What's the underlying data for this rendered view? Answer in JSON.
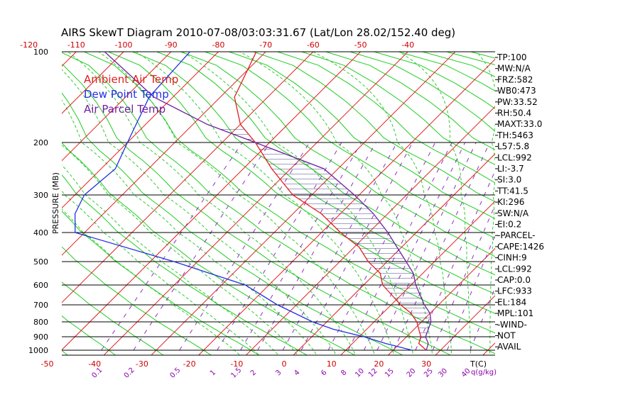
{
  "title": "AIRS SkewT Diagram 2010-07-08/03:03:31.67 (Lat/Lon 28.02/152.40 deg)",
  "legend": [
    {
      "label": "Ambient Air Temp",
      "color": "#e02020"
    },
    {
      "label": "Dew Point Temp",
      "color": "#2030e0"
    },
    {
      "label": "Air Parcel Temp",
      "color": "#7020a0"
    }
  ],
  "stats": [
    "TP:100",
    "MW:N/A",
    "FRZ:582",
    "WB0:473",
    "PW:33.52",
    "RH:50.4",
    "MAXT:33.0",
    "TH:5463",
    "L57:5.8",
    "LCL:992",
    "LI:-3.7",
    "SI:3.0",
    "TT:41.5",
    "KI:296",
    "SW:N/A",
    "EI:0.2",
    "-PARCEL-",
    "CAPE:1426",
    "CINH:9",
    "LCL:992",
    "CAP:0.0",
    "LFC:933",
    "EL:184",
    "MPL:101",
    "-WIND-",
    "NOT",
    "AVAIL"
  ],
  "chart_data": {
    "type": "line",
    "title": "AIRS SkewT Diagram 2010-07-08/03:03:31.67 (Lat/Lon 28.02/152.40 deg)",
    "ylabel": "PRESSURE (MB)",
    "xlabel": "T(C)",
    "mixing_label": "q(g/kg)",
    "pressure_ticks": [
      "100",
      "200",
      "300",
      "400",
      "500",
      "600",
      "700",
      "800",
      "900",
      "1000"
    ],
    "pressure_levels": [
      100,
      200,
      300,
      400,
      500,
      600,
      700,
      800,
      900,
      1000
    ],
    "top_temp_ticks": [
      "-120",
      "-110",
      "-100",
      "-90",
      "-80",
      "-70",
      "-60",
      "-50",
      "-40"
    ],
    "bottom_temp_ticks": [
      "-50",
      "-40",
      "-30",
      "-20",
      "-10",
      "0",
      "10",
      "20",
      "30"
    ],
    "mixing_ratio_ticks": [
      "0.1",
      "0.2",
      "0.5",
      "1",
      "1.5",
      "2",
      "3",
      "4",
      "6",
      "8",
      "10",
      "12",
      "15",
      "20",
      "25",
      "30",
      "40"
    ],
    "series": [
      {
        "name": "Ambient Air Temp",
        "color": "#e02020",
        "points": [
          [
            100,
            -72
          ],
          [
            150,
            -67
          ],
          [
            180,
            -60
          ],
          [
            200,
            -53
          ],
          [
            250,
            -44
          ],
          [
            300,
            -34
          ],
          [
            350,
            -24
          ],
          [
            400,
            -16
          ],
          [
            450,
            -9
          ],
          [
            500,
            -4
          ],
          [
            550,
            1
          ],
          [
            600,
            4
          ],
          [
            650,
            8
          ],
          [
            700,
            12
          ],
          [
            750,
            16
          ],
          [
            800,
            19
          ],
          [
            850,
            21
          ],
          [
            900,
            23
          ],
          [
            950,
            24
          ],
          [
            1000,
            27
          ]
        ]
      },
      {
        "name": "Dew Point Temp",
        "color": "#2030e0",
        "points": [
          [
            100,
            -86
          ],
          [
            150,
            -85
          ],
          [
            200,
            -80
          ],
          [
            250,
            -77
          ],
          [
            300,
            -78
          ],
          [
            350,
            -76
          ],
          [
            400,
            -72
          ],
          [
            500,
            -45
          ],
          [
            600,
            -25
          ],
          [
            700,
            -14
          ],
          [
            800,
            -3
          ],
          [
            850,
            3
          ],
          [
            900,
            11
          ],
          [
            950,
            17
          ],
          [
            1000,
            24
          ]
        ]
      },
      {
        "name": "Air Parcel Temp",
        "color": "#7020a0",
        "points": [
          [
            100,
            -104
          ],
          [
            150,
            -84
          ],
          [
            180,
            -67
          ],
          [
            200,
            -53
          ],
          [
            250,
            -33
          ],
          [
            300,
            -21
          ],
          [
            350,
            -13
          ],
          [
            400,
            -6
          ],
          [
            450,
            -1
          ],
          [
            500,
            4
          ],
          [
            550,
            8
          ],
          [
            600,
            11
          ],
          [
            650,
            14
          ],
          [
            700,
            17
          ],
          [
            750,
            20
          ],
          [
            800,
            22
          ],
          [
            850,
            23
          ],
          [
            900,
            24
          ],
          [
            950,
            26
          ],
          [
            1000,
            27
          ]
        ]
      }
    ]
  }
}
